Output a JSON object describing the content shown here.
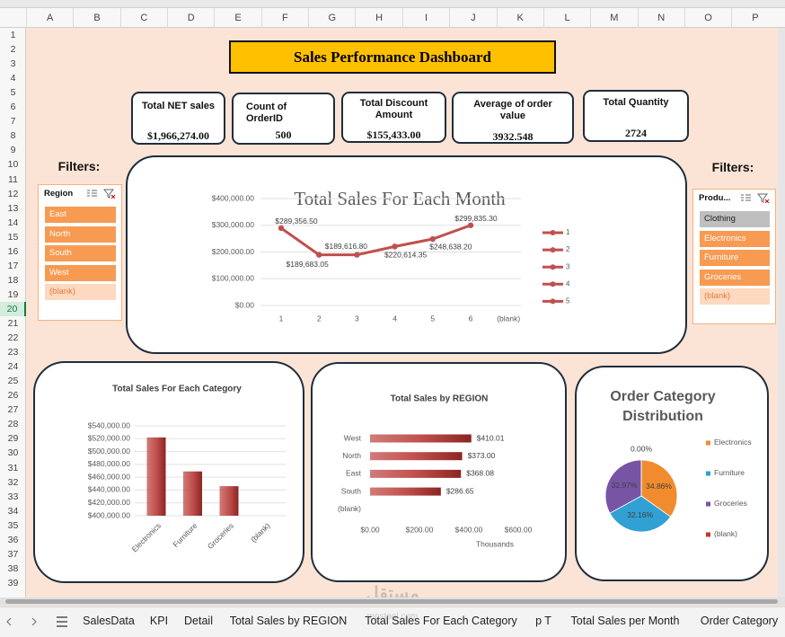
{
  "sheet": {
    "columns": [
      "A",
      "B",
      "C",
      "D",
      "E",
      "F",
      "G",
      "H",
      "I",
      "J",
      "K",
      "L",
      "M",
      "N",
      "O",
      "P"
    ],
    "rows": [
      1,
      2,
      3,
      4,
      5,
      6,
      7,
      8,
      9,
      10,
      11,
      12,
      13,
      14,
      15,
      16,
      17,
      18,
      19,
      20,
      21,
      22,
      23,
      24,
      25,
      26,
      27,
      28,
      29,
      30,
      31,
      32,
      33,
      34,
      35,
      36,
      37,
      38,
      39
    ],
    "tabs": [
      "SalesData",
      "KPI",
      "Detail",
      "Total Sales by REGION",
      "Total Sales For Each Category",
      "p T",
      "Total Sales per Month",
      "Order Category"
    ],
    "watermark": [
      "مستقل",
      "mostaql.com"
    ]
  },
  "title": "Sales Performance Dashboard",
  "kpis": [
    {
      "label": "Total NET sales",
      "value": "$1,966,274.00"
    },
    {
      "label": "Count of OrderID",
      "value": 500
    },
    {
      "label": "Total Discount Amount",
      "value": "$155,433.00"
    },
    {
      "label": "Average of order value",
      "value": 3932.548
    },
    {
      "label": "Total Quantity",
      "value": 2724
    }
  ],
  "filters": [
    {
      "label": "Filters:",
      "title": "Region",
      "items": [
        "East",
        "North",
        "South",
        "West",
        "(blank)"
      ],
      "states": [
        "selected",
        "selected",
        "selected",
        "selected",
        "empty"
      ]
    },
    {
      "label": "Filters:",
      "title": "Produ...",
      "items": [
        "Clothing",
        "Electronics",
        "Furniture",
        "Groceries",
        "(blank)"
      ],
      "states": [
        "unselected",
        "selected",
        "selected",
        "selected",
        "empty"
      ]
    }
  ],
  "chart_data": [
    {
      "type": "line",
      "title": "Total Sales For Each Month",
      "categories": [
        1,
        2,
        3,
        4,
        5,
        6,
        "(blank)"
      ],
      "values": [
        289356.5,
        189683.05,
        189616.8,
        220614.35,
        248638.2,
        299835.3,
        null
      ],
      "value_labels": [
        "$289,356.50",
        "$189,683.05",
        "$189,616.80",
        "$220,614.35",
        "$248,638.20",
        "$299,835.30",
        null
      ],
      "color": "#c0504d",
      "ylim": [
        0,
        400000
      ],
      "yticks": [
        {
          "value": 0,
          "label": "$0.00"
        },
        {
          "value": 100000,
          "label": "$100,000.00"
        },
        {
          "value": 200000,
          "label": "$200,000.00"
        },
        {
          "value": 300000,
          "label": "$300,000.00"
        },
        {
          "value": 400000,
          "label": "$400,000.00"
        }
      ],
      "grid": true,
      "legend": {
        "position": "right",
        "entries": [
          "1",
          "2",
          "3",
          "4",
          "5"
        ]
      }
    },
    {
      "type": "bar",
      "title": "Total Sales For Each Category",
      "categories": [
        "Electronics",
        "Furniture",
        "Groceries",
        "(blank)"
      ],
      "values": [
        522000,
        469000,
        446000,
        null
      ],
      "color": "#c0504d",
      "ylim": [
        400000,
        540000
      ],
      "yticks": [
        {
          "value": 400000,
          "label": "$400,000.00"
        },
        {
          "value": 420000,
          "label": "$420,000.00"
        },
        {
          "value": 440000,
          "label": "$440,000.00"
        },
        {
          "value": 460000,
          "label": "$460,000.00"
        },
        {
          "value": 480000,
          "label": "$480,000.00"
        },
        {
          "value": 500000,
          "label": "$500,000.00"
        },
        {
          "value": 520000,
          "label": "$520,000.00"
        },
        {
          "value": 540000,
          "label": "$540,000.00"
        }
      ],
      "grid": true
    },
    {
      "type": "barh",
      "title": "Total Sales by REGION",
      "categories": [
        "West",
        "North",
        "East",
        "South",
        "(blank)"
      ],
      "values": [
        410.01,
        373,
        368.08,
        286.65,
        null
      ],
      "value_labels": [
        "$410.01",
        "$373.00",
        "$368.08",
        "$286.65",
        null
      ],
      "color": "#c0504d",
      "xlim": [
        0,
        600
      ],
      "xticks": [
        {
          "value": 0,
          "label": "$0.00"
        },
        {
          "value": 200,
          "label": "$200.00"
        },
        {
          "value": 400,
          "label": "$400.00"
        },
        {
          "value": 600,
          "label": "$600.00"
        }
      ],
      "xlabel": "Thousands",
      "grid": false
    },
    {
      "type": "pie",
      "title": "Order Category Distribution",
      "categories": [
        "Electronics",
        "Furniture",
        "Groceries",
        "(blank)"
      ],
      "values": [
        34.86,
        32.16,
        32.97,
        0
      ],
      "value_labels": [
        "34.86%",
        "32.16%",
        "32.97%",
        "0.00%"
      ],
      "colors": [
        "#f08c2e",
        "#31a0d3",
        "#7854a4",
        "#c0392b"
      ],
      "legend": "right"
    }
  ]
}
